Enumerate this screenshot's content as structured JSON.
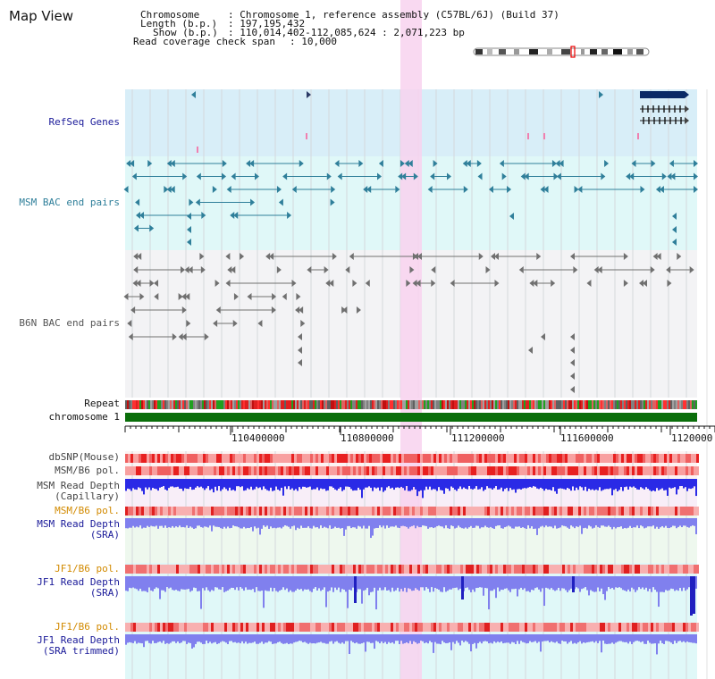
{
  "title": "Map View",
  "info": {
    "chromosome_label": "Chromosome",
    "chromosome_value": ": Chromosome 1, reference assembly (C57BL/6J) (Build 37)",
    "length_label": "Length (b.p.)",
    "length_value": ": 197,195,432",
    "show_label": "Show (b.p.)",
    "show_value": ": 110,014,402-112,085,624 : 2,071,223 bp",
    "coverage_label": "Read coverage check span",
    "coverage_value": ": 10,000"
  },
  "tracks": {
    "refseq": "RefSeq Genes",
    "msm_bac": "MSM BAC end pairs",
    "b6n_bac": "B6N BAC end pairs",
    "repeat": "Repeat",
    "chromosome": "chromosome 1",
    "dbsnp": "dbSNP(Mouse)",
    "msm_b6_pol_1": "MSM/B6 pol.",
    "msm_depth_cap_1": "MSM Read Depth",
    "msm_depth_cap_2": "(Capillary)",
    "msm_b6_pol_2": "MSM/B6 pol.",
    "msm_depth_sra_1": "MSM Read Depth",
    "msm_depth_sra_2": "(SRA)",
    "jf1_b6_pol_1": "JF1/B6 pol.",
    "jf1_depth_sra_1": "JF1 Read Depth",
    "jf1_depth_sra_2": "(SRA)",
    "jf1_b6_pol_2": "JF1/B6 pol.",
    "jf1_depth_trim_1": "JF1 Read Depth",
    "jf1_depth_trim_2": "(SRA trimmed)"
  },
  "axis": {
    "ticks": [
      "110400000",
      "110800000",
      "111200000",
      "111600000",
      "1120000"
    ]
  },
  "colors": {
    "refseq_bg": "#d8eef8",
    "msm_bg": "#e0f8f8",
    "b6n_bg": "#f3f3f5",
    "highlight": "#f8d2ee",
    "msm_bac": "#2f7f9a",
    "b6n_bac": "#707070",
    "refseq_gene": "#0b2a66",
    "chromosome_bar": "#0a6e0a",
    "label_dark_blue": "#1a1a99",
    "label_orange": "#d28a00",
    "depth_blue": "#2a2ae6",
    "depth_light": "#8080ee"
  }
}
